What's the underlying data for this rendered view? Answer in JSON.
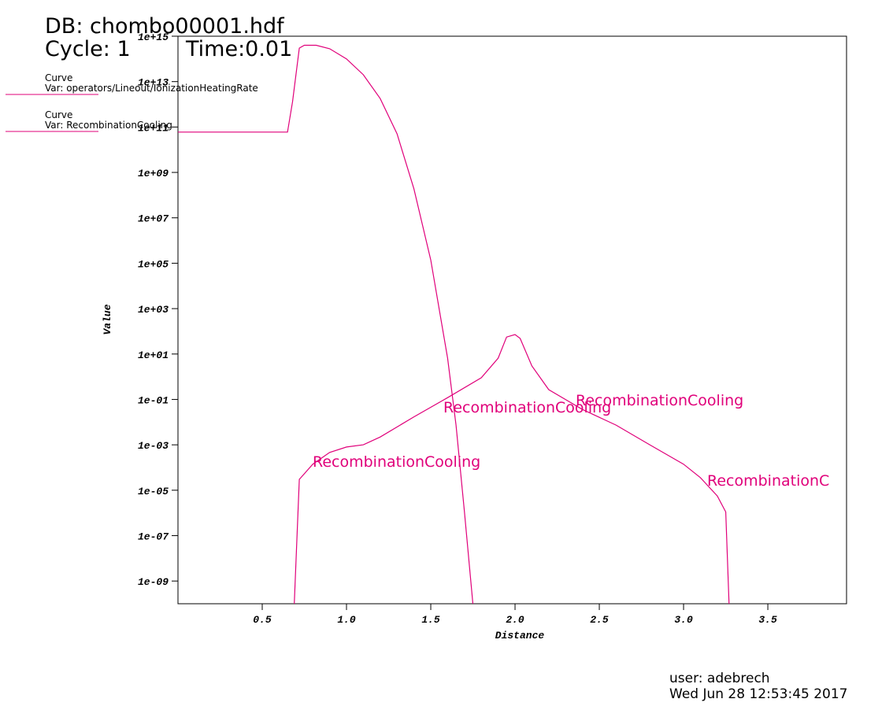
{
  "chart_data": {
    "type": "line",
    "header": [
      "DB: chombo00001.hdf",
      "Cycle: 1",
      "Time:0.01"
    ],
    "xlabel": "Distance",
    "ylabel": "Value",
    "log_y": true,
    "xlim": [
      0,
      3.967
    ],
    "ylim": [
      1e-10,
      1000000000000000.0
    ],
    "xticks": [
      0.5,
      {
        "value": 1,
        "label": "1.0"
      },
      1.5,
      {
        "value": 2,
        "label": "2.0"
      },
      2.5,
      {
        "value": 3,
        "label": "3.0"
      },
      3.5
    ],
    "yticks": [
      {
        "value": 1e-09,
        "label": "1e-09"
      },
      {
        "value": 1e-07,
        "label": "1e-07"
      },
      {
        "value": 1e-05,
        "label": "1e-05"
      },
      {
        "value": 0.001,
        "label": "1e-03"
      },
      {
        "value": 0.1,
        "label": "1e-01"
      },
      {
        "value": 10,
        "label": "1e+01"
      },
      {
        "value": 1000,
        "label": "1e+03"
      },
      {
        "value": 100000,
        "label": "1e+05"
      },
      {
        "value": 10000000,
        "label": "1e+07"
      },
      {
        "value": 1000000000,
        "label": "1e+09"
      },
      {
        "value": 100000000000,
        "label": "1e+11"
      },
      {
        "value": 10000000000000,
        "label": "1e+13"
      },
      {
        "value": 1000000000000000,
        "label": "1e+15"
      }
    ],
    "series": [
      {
        "name": "Var: operators/Lineout/IonizationHeatingRate",
        "kind": "Curve",
        "color": "#e0007a",
        "x": [
          0,
          0.65,
          0.68,
          0.72,
          0.75,
          0.82,
          0.9,
          1.0,
          1.1,
          1.2,
          1.3,
          1.4,
          1.5,
          1.6,
          1.65,
          1.7,
          1.75
        ],
        "values": [
          60000000000.0,
          60000000000.0,
          1300000000000.0,
          300000000000000.0,
          400000000000000.0,
          400000000000000.0,
          280000000000000.0,
          100000000000000.0,
          20000000000000.0,
          1800000000000.0,
          50000000000.0,
          190000000.0,
          140000.0,
          6.6,
          0.0074,
          1.1e-06,
          1e-10
        ]
      },
      {
        "name": "Var: RecombinationCooling",
        "kind": "Curve",
        "color": "#e0007a",
        "x": [
          0.69,
          0.72,
          0.8,
          0.9,
          1.0,
          1.1,
          1.2,
          1.4,
          1.6,
          1.8,
          1.9,
          1.95,
          2.0,
          2.03,
          2.1,
          2.2,
          2.4,
          2.6,
          2.8,
          3.0,
          3.1,
          3.2,
          3.25,
          3.27
        ],
        "values": [
          1e-10,
          3e-05,
          0.00014,
          0.00046,
          0.0008,
          0.001,
          0.0022,
          0.017,
          0.12,
          0.9,
          6.6,
          56,
          72,
          49,
          3,
          0.27,
          0.036,
          0.0074,
          0.001,
          0.00014,
          3.6e-05,
          5.6e-06,
          1.1e-06,
          1e-10
        ]
      }
    ],
    "annotations": [
      "RecombinationCooling",
      "RecombinationCooling",
      "RecombinationCooling",
      "RecombinationC"
    ],
    "footer": [
      "user: adebrech",
      "Wed Jun 28 12:53:45 2017"
    ]
  }
}
